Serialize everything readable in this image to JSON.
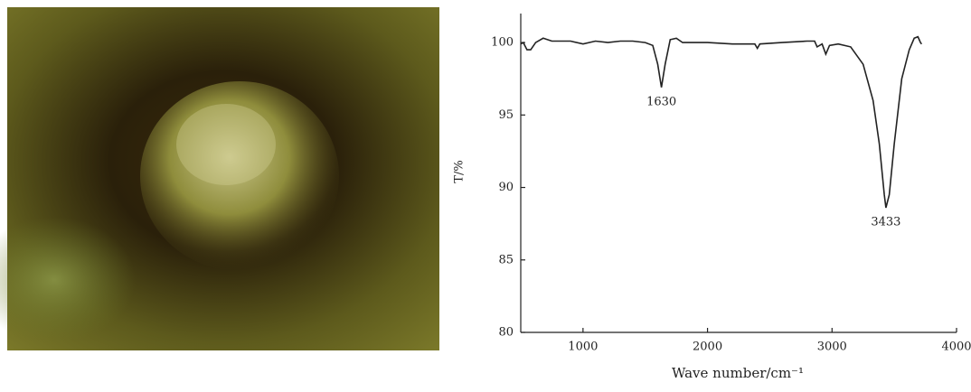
{
  "chart_data": {
    "type": "line",
    "xlabel": "Wave number/cm⁻¹",
    "ylabel": "T/%",
    "x": [
      500,
      520,
      550,
      580,
      620,
      680,
      750,
      900,
      1000,
      1100,
      1200,
      1300,
      1400,
      1500,
      1560,
      1600,
      1630,
      1660,
      1700,
      1750,
      1800,
      2000,
      2200,
      2380,
      2400,
      2420,
      2600,
      2800,
      2860,
      2880,
      2920,
      2950,
      2980,
      3050,
      3150,
      3250,
      3330,
      3380,
      3420,
      3433,
      3460,
      3500,
      3560,
      3620,
      3660,
      3690,
      3710,
      3720
    ],
    "series": [
      {
        "color": "#222222",
        "values": [
          99.9,
          100.0,
          99.5,
          99.5,
          100.0,
          100.3,
          100.1,
          100.1,
          99.9,
          100.1,
          100.0,
          100.1,
          100.1,
          100.0,
          99.8,
          98.5,
          96.9,
          98.5,
          100.2,
          100.3,
          100.0,
          100.0,
          99.9,
          99.9,
          99.6,
          99.9,
          100.0,
          100.1,
          100.1,
          99.7,
          99.9,
          99.2,
          99.8,
          99.9,
          99.7,
          98.5,
          96.0,
          93.0,
          89.5,
          88.6,
          89.5,
          93.0,
          97.5,
          99.5,
          100.3,
          100.4,
          100.0,
          99.9
        ]
      }
    ],
    "annotations": [
      "1630",
      "3433"
    ],
    "xlim": [
      500,
      4000
    ],
    "xticks": [
      1000,
      2000,
      3000,
      4000
    ],
    "ylim": [
      80,
      102
    ],
    "yticks": [
      80,
      85,
      90,
      95,
      100
    ]
  }
}
